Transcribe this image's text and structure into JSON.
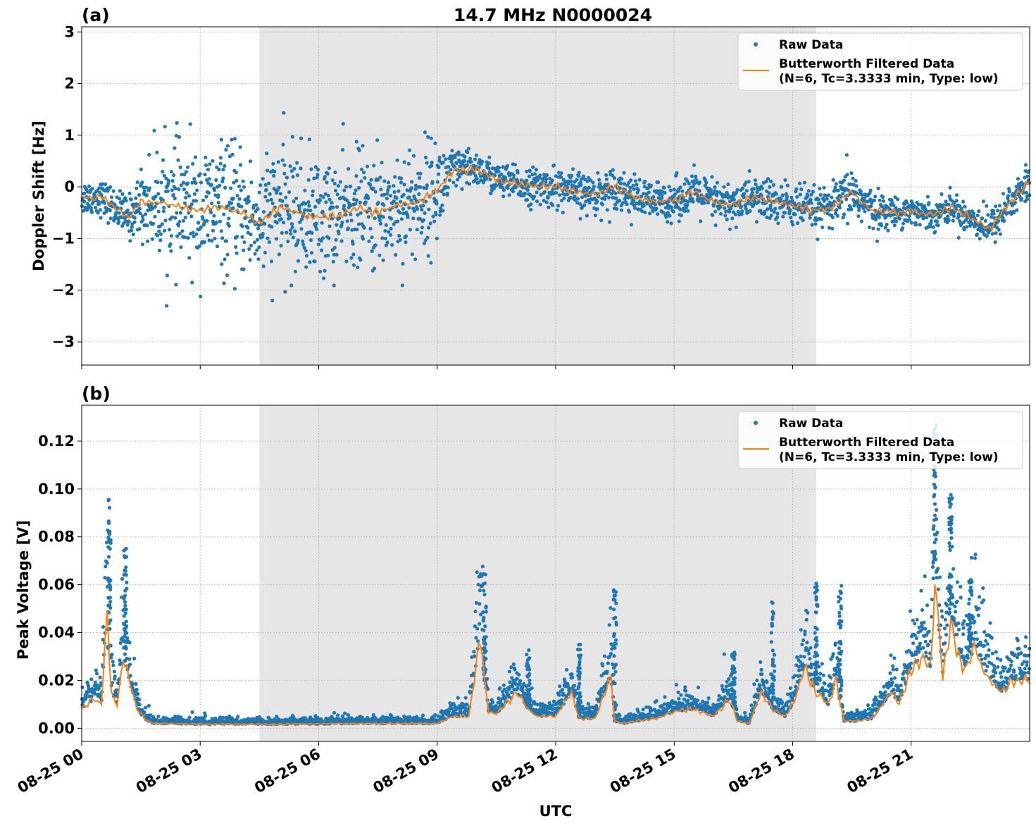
{
  "figure": {
    "title": "14.7 MHz N0000024",
    "xlabel": "UTC"
  },
  "colors": {
    "raw": "#1f77b4",
    "filtered": "#ff7f0e",
    "shade": "#e6e6e6",
    "grid": "#b0b0b0",
    "legend_border": "#cccccc"
  },
  "legend": {
    "raw_label": "Raw Data",
    "filtered_label_line1": "Butterworth Filtered Data",
    "filtered_label_line2": "(N=6, Tc=3.3333 min, Type: low)",
    "placement": "upper right"
  },
  "xaxis": {
    "range_hours": [
      0,
      24
    ],
    "ticks": [
      {
        "hour": 0,
        "label": "08-25 00"
      },
      {
        "hour": 3,
        "label": "08-25 03"
      },
      {
        "hour": 6,
        "label": "08-25 06"
      },
      {
        "hour": 9,
        "label": "08-25 09"
      },
      {
        "hour": 12,
        "label": "08-25 12"
      },
      {
        "hour": 15,
        "label": "08-25 15"
      },
      {
        "hour": 18,
        "label": "08-25 18"
      },
      {
        "hour": 21,
        "label": "08-25 21"
      }
    ]
  },
  "chart_data": [
    {
      "panel": "(a)",
      "type": "scatter",
      "ylabel": "Doppler Shift [Hz]",
      "ylim": [
        -3.45,
        3.1
      ],
      "yticks": [
        {
          "value": 3,
          "label": "3"
        },
        {
          "value": 2,
          "label": "2"
        },
        {
          "value": 1,
          "label": "1"
        },
        {
          "value": 0,
          "label": "0"
        },
        {
          "value": -1,
          "label": "−1"
        },
        {
          "value": -2,
          "label": "−2"
        },
        {
          "value": -3,
          "label": "−3"
        }
      ],
      "grid": true,
      "shaded_region_hours": [
        4.5,
        18.6
      ],
      "series": [
        {
          "name": "Butterworth Filtered Data",
          "hours": [
            0,
            0.5,
            1,
            1.2,
            1.5,
            2,
            2.5,
            3,
            3.5,
            4,
            4.5,
            5,
            5.5,
            6,
            6.5,
            7,
            7.5,
            8,
            8.5,
            9,
            9.4,
            10,
            10.5,
            11,
            11.5,
            12,
            12.5,
            13,
            13.5,
            14,
            14.5,
            15,
            15.5,
            16,
            16.5,
            17,
            17.5,
            18,
            18.5,
            19,
            19.5,
            20,
            20.5,
            21,
            21.5,
            22,
            22.5,
            23,
            23.5,
            24
          ],
          "values": [
            -0.2,
            -0.2,
            -0.5,
            -0.6,
            -0.3,
            -0.3,
            -0.4,
            -0.45,
            -0.4,
            -0.5,
            -0.7,
            -0.4,
            -0.5,
            -0.6,
            -0.55,
            -0.4,
            -0.5,
            -0.35,
            -0.3,
            -0.05,
            0.3,
            0.35,
            0.15,
            0.05,
            0.0,
            0.0,
            -0.1,
            -0.15,
            0.0,
            -0.2,
            -0.3,
            -0.25,
            -0.1,
            -0.3,
            -0.35,
            -0.2,
            -0.3,
            -0.35,
            -0.45,
            -0.4,
            -0.1,
            -0.45,
            -0.5,
            -0.45,
            -0.55,
            -0.4,
            -0.6,
            -0.8,
            -0.3,
            0.1
          ]
        },
        {
          "name": "Raw Data",
          "hours": [
            0,
            0.5,
            1,
            1.3,
            1.6,
            2,
            2.5,
            3,
            3.5,
            4,
            4.5,
            5,
            5.5,
            6,
            6.5,
            7,
            7.5,
            8,
            8.5,
            9,
            9.4,
            10,
            10.5,
            11,
            11.5,
            12,
            12.5,
            13,
            13.5,
            14,
            14.5,
            15,
            15.5,
            16,
            16.5,
            17,
            17.5,
            18,
            18.5,
            19,
            19.5,
            20,
            20.5,
            21,
            21.5,
            22,
            22.5,
            23,
            23.5,
            24
          ],
          "spread": [
            0.3,
            0.3,
            0.35,
            0.4,
            0.7,
            1.0,
            1.1,
            1.05,
            1.1,
            1.05,
            1.05,
            1.1,
            1.1,
            1.05,
            1.0,
            1.0,
            1.0,
            1.0,
            1.0,
            0.9,
            0.4,
            0.3,
            0.3,
            0.3,
            0.32,
            0.35,
            0.35,
            0.35,
            0.35,
            0.35,
            0.35,
            0.35,
            0.35,
            0.4,
            0.35,
            0.4,
            0.4,
            0.4,
            0.35,
            0.35,
            0.5,
            0.35,
            0.25,
            0.25,
            0.25,
            0.25,
            0.3,
            0.3,
            0.35,
            0.35
          ]
        }
      ]
    },
    {
      "panel": "(b)",
      "type": "scatter",
      "ylabel": "Peak Voltage [V]",
      "ylim": [
        -0.0055,
        0.135
      ],
      "yticks": [
        {
          "value": 0.0,
          "label": "0.00"
        },
        {
          "value": 0.02,
          "label": "0.02"
        },
        {
          "value": 0.04,
          "label": "0.04"
        },
        {
          "value": 0.06,
          "label": "0.06"
        },
        {
          "value": 0.08,
          "label": "0.08"
        },
        {
          "value": 0.1,
          "label": "0.10"
        },
        {
          "value": 0.12,
          "label": "0.12"
        }
      ],
      "grid": true,
      "shaded_region_hours": [
        4.5,
        18.6
      ],
      "series": [
        {
          "name": "Butterworth Filtered Data",
          "hours": [
            0,
            0.3,
            0.5,
            0.65,
            0.75,
            0.9,
            1.05,
            1.2,
            1.4,
            1.6,
            1.8,
            2,
            3,
            4,
            5,
            6,
            7,
            8,
            9,
            9.4,
            9.8,
            10.1,
            10.2,
            10.3,
            10.5,
            11,
            11.3,
            11.5,
            12,
            12.4,
            12.6,
            13,
            13.4,
            13.5,
            13.7,
            14,
            14.5,
            15,
            15.5,
            16,
            16.4,
            16.6,
            16.9,
            17.2,
            17.5,
            17.8,
            18,
            18.3,
            18.6,
            18.9,
            19.1,
            19.3,
            19.6,
            20,
            20.5,
            20.7,
            21,
            21.3,
            21.5,
            21.6,
            21.8,
            22,
            22.2,
            22.4,
            22.6,
            22.8,
            23,
            23.3,
            23.6,
            24
          ],
          "values": [
            0.008,
            0.012,
            0.01,
            0.05,
            0.015,
            0.01,
            0.03,
            0.02,
            0.008,
            0.004,
            0.002,
            0.002,
            0.0017,
            0.0017,
            0.0017,
            0.0018,
            0.002,
            0.002,
            0.002,
            0.005,
            0.005,
            0.04,
            0.02,
            0.007,
            0.006,
            0.015,
            0.008,
            0.005,
            0.005,
            0.015,
            0.004,
            0.004,
            0.022,
            0.003,
            0.002,
            0.003,
            0.004,
            0.007,
            0.008,
            0.005,
            0.012,
            0.003,
            0.002,
            0.015,
            0.008,
            0.005,
            0.01,
            0.025,
            0.015,
            0.01,
            0.02,
            0.003,
            0.003,
            0.004,
            0.015,
            0.01,
            0.025,
            0.03,
            0.025,
            0.065,
            0.02,
            0.045,
            0.03,
            0.025,
            0.035,
            0.025,
            0.02,
            0.015,
            0.02,
            0.02
          ],
          "spike_hours": [
            0.7,
            1.1,
            10.2,
            11.3,
            12.6,
            13.5,
            16.5,
            17.5,
            18.6,
            19.2,
            21.6,
            22.0,
            22.5
          ],
          "spike_values": [
            0.098,
            0.076,
            0.065,
            0.034,
            0.036,
            0.059,
            0.033,
            0.056,
            0.061,
            0.064,
            0.129,
            0.099,
            0.063
          ]
        }
      ]
    }
  ]
}
